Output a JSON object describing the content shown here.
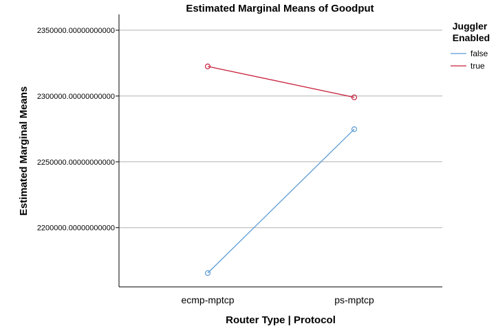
{
  "chart_data": {
    "type": "line",
    "title": "Estimated Marginal Means of Goodput",
    "xlabel": "Router Type | Protocol",
    "ylabel": "Estimated Marginal Means",
    "categories": [
      "ecmp-mptcp",
      "ps-mptcp"
    ],
    "ylim": [
      2155000,
      2362000
    ],
    "yticks": [
      2200000,
      2250000,
      2300000,
      2350000
    ],
    "ytick_labels": [
      "2200000.00000000000",
      "2250000.00000000000",
      "2300000.00000000000",
      "2350000.00000000000"
    ],
    "grid": "horizontal",
    "legend_title": "Juggler Enabled",
    "legend_position": "right",
    "series": [
      {
        "name": "false",
        "color": "#5b9bd5",
        "values": [
          2165500,
          2274800
        ]
      },
      {
        "name": "true",
        "color": "#c8203c",
        "values": [
          2322500,
          2299000
        ]
      }
    ]
  }
}
